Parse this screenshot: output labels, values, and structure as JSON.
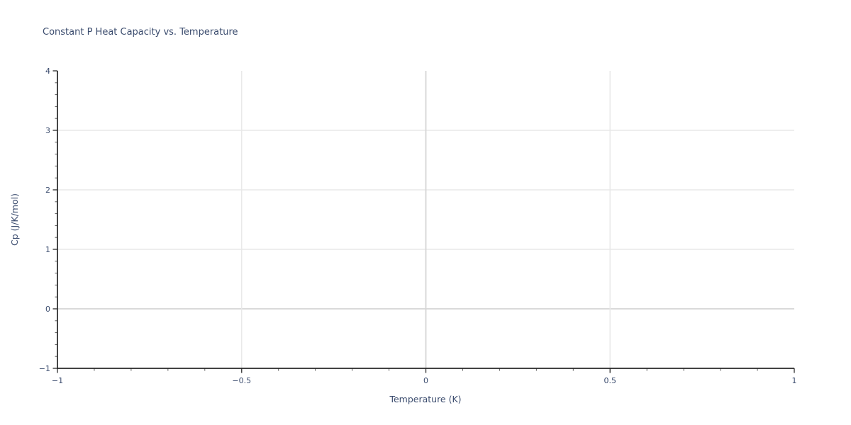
{
  "chart_data": {
    "type": "line",
    "title": "Constant P Heat Capacity vs. Temperature",
    "xlabel": "Temperature (K)",
    "ylabel": "Cp (J/K/mol)",
    "xlim": [
      -1,
      1
    ],
    "ylim": [
      -1,
      4
    ],
    "x_major_ticks": [
      -1,
      -0.5,
      0,
      0.5,
      1
    ],
    "x_tick_labels": [
      "−1",
      "−0.5",
      "0",
      "0.5",
      "1"
    ],
    "y_major_ticks": [
      -1,
      0,
      1,
      2,
      3,
      4
    ],
    "y_tick_labels": [
      "−1",
      "0",
      "1",
      "2",
      "3",
      "4"
    ],
    "x_minor_step": 0.1,
    "y_minor_step": 0.2,
    "grid": true,
    "legend": false,
    "series": [],
    "colors": {
      "background": "#ffffff",
      "text": "#3b4c6e",
      "spine": "#262626",
      "major_tick": "#3a3a3a",
      "minor_tick": "#5a5a5a",
      "grid": "#e8e8e8",
      "zero_grid": "#d5d5d5"
    }
  }
}
